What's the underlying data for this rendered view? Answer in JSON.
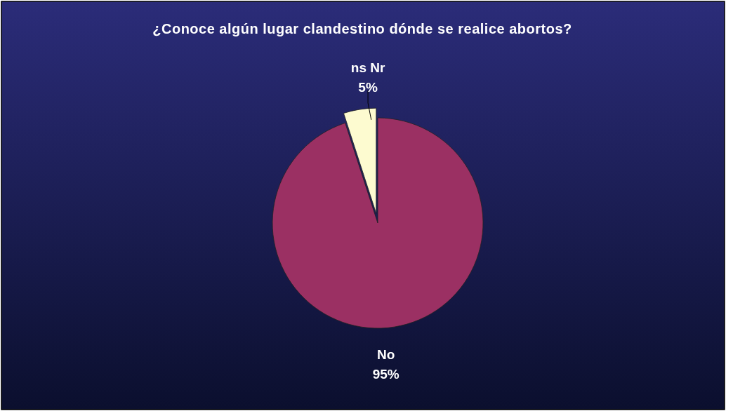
{
  "chart_data": {
    "type": "pie",
    "title": "¿Conoce algún lugar clandestino dónde se realice abortos?",
    "categories": [
      "No",
      "ns Nr"
    ],
    "values": [
      95,
      5
    ],
    "value_labels": [
      "95%",
      "5%"
    ],
    "colors": [
      "#9b3063",
      "#fdfbd0"
    ]
  }
}
